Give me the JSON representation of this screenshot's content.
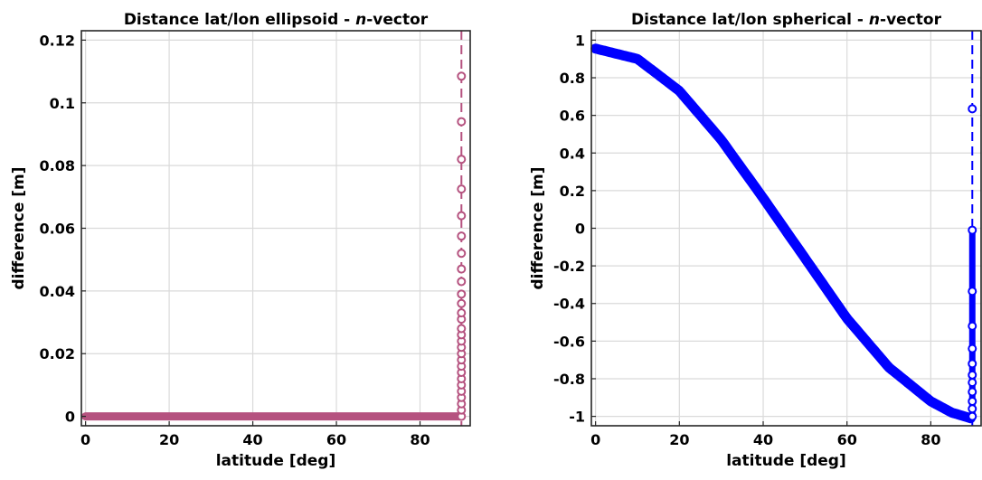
{
  "chart_data": [
    {
      "type": "line",
      "title_pre": "Distance lat/lon ellipsoid - ",
      "title_italic": "n",
      "title_post": "-vector",
      "xlabel": "latitude [deg]",
      "ylabel": "difference [m]",
      "xlim": [
        -1,
        92
      ],
      "ylim": [
        -0.003,
        0.123
      ],
      "xticks": [
        0,
        20,
        40,
        60,
        80
      ],
      "xtick_labels": [
        "0",
        "20",
        "40",
        "60",
        "80"
      ],
      "yticks": [
        0,
        0.02,
        0.04,
        0.06,
        0.08,
        0.1,
        0.12
      ],
      "ytick_labels": [
        "0",
        "0.02",
        "0.04",
        "0.06",
        "0.08",
        "0.1",
        "0.12"
      ],
      "grid": true,
      "color": "#b5527f",
      "line_style": "dashed",
      "marker": "circle",
      "series": [
        {
          "x_range": [
            0,
            89.5
          ],
          "y_constant": 0,
          "near_pole_x": 89.9,
          "near_pole_y": [
            0.0,
            0.002,
            0.004,
            0.006,
            0.008,
            0.01,
            0.012,
            0.014,
            0.016,
            0.018,
            0.02,
            0.022,
            0.024,
            0.026,
            0.028,
            0.031,
            0.033,
            0.036,
            0.039,
            0.043,
            0.047,
            0.052,
            0.0575,
            0.064,
            0.0725,
            0.082,
            0.094,
            0.1085
          ]
        }
      ]
    },
    {
      "type": "line",
      "title_pre": "Distance lat/lon spherical - ",
      "title_italic": "n",
      "title_post": "-vector",
      "xlabel": "latitude [deg]",
      "ylabel": "difference [m]",
      "xlim": [
        -1,
        92
      ],
      "ylim": [
        -1.05,
        1.05
      ],
      "xticks": [
        0,
        20,
        40,
        60,
        80
      ],
      "xtick_labels": [
        "0",
        "20",
        "40",
        "60",
        "80"
      ],
      "yticks": [
        -1,
        -0.8,
        -0.6,
        -0.4,
        -0.2,
        0,
        0.2,
        0.4,
        0.6,
        0.8,
        1
      ],
      "ytick_labels": [
        "-1",
        "-0.8",
        "-0.6",
        "-0.4",
        "-0.2",
        "0",
        "0.2",
        "0.4",
        "0.6",
        "0.8",
        "1"
      ],
      "grid": true,
      "color": "#0000ff",
      "line_style": "dashed",
      "marker": "circle",
      "series": [
        {
          "curve": "y = 0.96*cos(2*lat) - 0.05 near pole",
          "x": [
            0,
            10,
            20,
            30,
            40,
            50,
            60,
            70,
            80,
            85,
            88,
            89.5
          ],
          "y": [
            0.955,
            0.9,
            0.73,
            0.47,
            0.16,
            -0.16,
            -0.48,
            -0.74,
            -0.92,
            -0.98,
            -1.0,
            -1.01
          ],
          "near_pole_x": 89.9,
          "near_pole_y": [
            -1.0,
            -0.96,
            -0.92,
            -0.87,
            -0.82,
            -0.78,
            -0.72,
            -0.64,
            -0.52,
            -0.335,
            -0.01,
            0.635
          ]
        }
      ]
    }
  ]
}
